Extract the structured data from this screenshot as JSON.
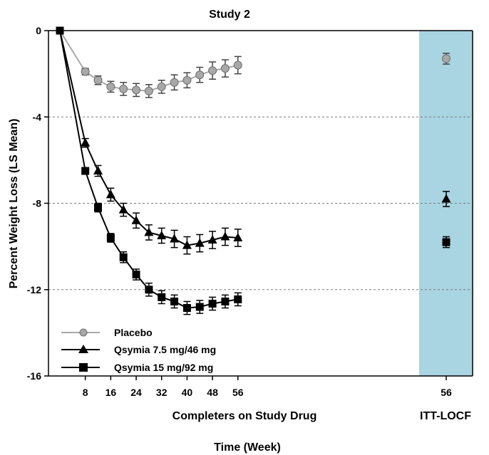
{
  "chart_data": {
    "type": "line",
    "title": "Study 2",
    "xlabel": "Completers on Study Drug",
    "xlabel_locf": "ITT-LOCF",
    "time_label": "Time (Week)",
    "ylabel": "Percent Weight Loss (LS Mean)",
    "ylim": [
      -16,
      0
    ],
    "yticks": [
      "0",
      "-4",
      "-8",
      "-12",
      "-16"
    ],
    "xticks": [
      "8",
      "16",
      "24",
      "32",
      "40",
      "48",
      "56"
    ],
    "locf_tick": "56",
    "grid": "dashed horizontal at -4, -8, -12",
    "colors": {
      "placebo": "#a8a8a8",
      "qsymia": "#000000",
      "locf_band": "#a9d4e2"
    },
    "series": [
      {
        "name": "Placebo",
        "marker": "circle",
        "x": [
          0,
          8,
          12,
          16,
          20,
          24,
          28,
          32,
          36,
          40,
          44,
          48,
          52,
          56
        ],
        "y": [
          0,
          -1.9,
          -2.3,
          -2.6,
          -2.7,
          -2.75,
          -2.8,
          -2.6,
          -2.4,
          -2.3,
          -2.05,
          -1.85,
          -1.75,
          -1.6
        ],
        "err": [
          0,
          0.15,
          0.2,
          0.25,
          0.3,
          0.3,
          0.3,
          0.3,
          0.35,
          0.35,
          0.35,
          0.4,
          0.4,
          0.4
        ],
        "locf": -1.3,
        "locf_err": 0.25
      },
      {
        "name": "Qsymia 7.5 mg/46 mg",
        "marker": "triangle",
        "x": [
          0,
          8,
          12,
          16,
          20,
          24,
          28,
          32,
          36,
          40,
          44,
          48,
          52,
          56
        ],
        "y": [
          0,
          -5.2,
          -6.5,
          -7.6,
          -8.3,
          -8.8,
          -9.35,
          -9.5,
          -9.65,
          -9.95,
          -9.85,
          -9.7,
          -9.55,
          -9.6
        ],
        "err": [
          0,
          0.2,
          0.25,
          0.3,
          0.3,
          0.35,
          0.35,
          0.35,
          0.4,
          0.4,
          0.4,
          0.4,
          0.4,
          0.4
        ],
        "locf": -7.8,
        "locf_err": 0.35
      },
      {
        "name": "Qsymia 15 mg/92 mg",
        "marker": "square",
        "x": [
          0,
          8,
          12,
          16,
          20,
          24,
          28,
          32,
          36,
          40,
          44,
          48,
          52,
          56
        ],
        "y": [
          0,
          -6.5,
          -8.2,
          -9.6,
          -10.5,
          -11.3,
          -12.0,
          -12.35,
          -12.55,
          -12.85,
          -12.8,
          -12.65,
          -12.55,
          -12.45
        ],
        "err": [
          0,
          0.15,
          0.2,
          0.2,
          0.25,
          0.25,
          0.3,
          0.3,
          0.3,
          0.3,
          0.3,
          0.3,
          0.3,
          0.3
        ],
        "locf": -9.8,
        "locf_err": 0.25
      }
    ]
  }
}
